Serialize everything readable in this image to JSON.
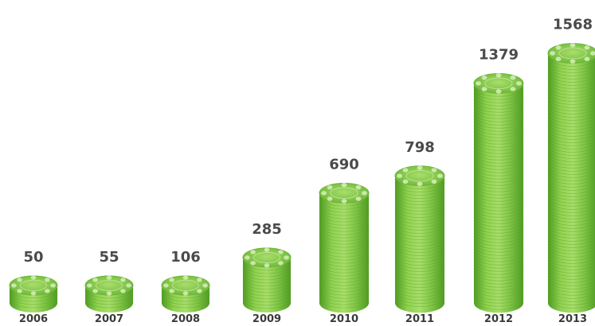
{
  "chart_data": {
    "type": "bar",
    "categories": [
      "2006",
      "2007",
      "2008",
      "2009",
      "2010",
      "2011",
      "2012",
      "2013"
    ],
    "values": [
      50,
      55,
      106,
      285,
      690,
      798,
      1379,
      1568
    ],
    "ylim": [
      0,
      1568
    ],
    "grid": false,
    "legend": "none",
    "colors": {
      "chip_main": "#7cc243",
      "chip_light": "#a8de6a",
      "chip_dark": "#4f9a22",
      "chip_top": "#8fd14f",
      "label": "#4a4a4a"
    }
  }
}
